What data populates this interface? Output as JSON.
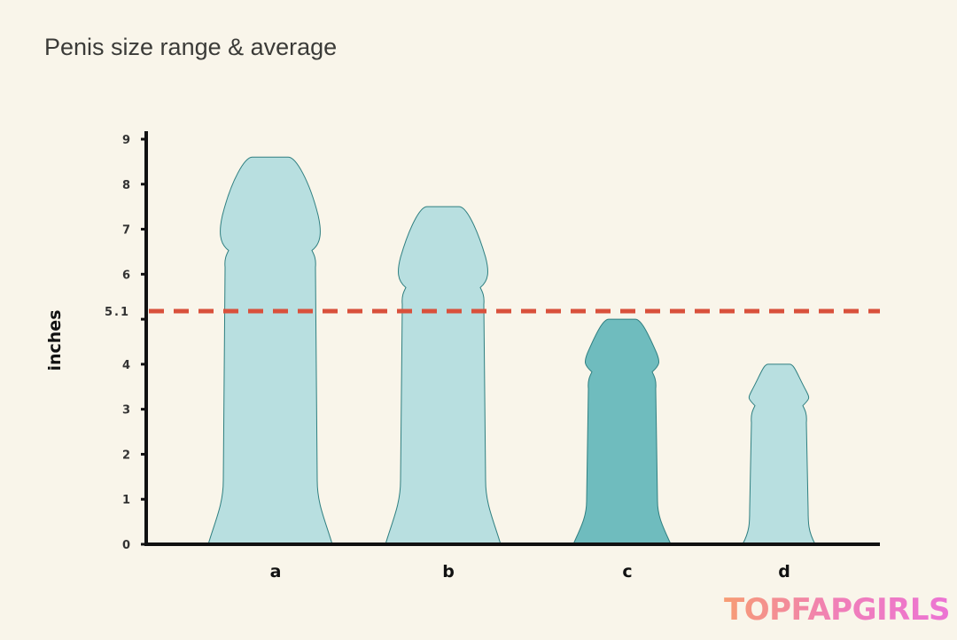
{
  "chart_data": {
    "type": "bar",
    "title": "Penis size range & average",
    "ylabel": "inches",
    "xlabel": "",
    "categories": [
      "a",
      "b",
      "c",
      "d"
    ],
    "values": [
      8.6,
      7.5,
      5.0,
      4.0
    ],
    "highlighted_category": "c",
    "ylim": [
      0,
      9
    ],
    "yticks": [
      0,
      1,
      2,
      3,
      4,
      5,
      6,
      7,
      8,
      9
    ],
    "reference_line": {
      "value": 5.1,
      "label": "5.1",
      "style": "dashed",
      "color": "#d9513c"
    },
    "grid": false,
    "colors": {
      "bar": "#b8dfe0",
      "highlight": "#6fbcbe",
      "outline": "#2f7f80",
      "axis": "#111111"
    }
  },
  "watermark": "TOPFAPGIRLS"
}
